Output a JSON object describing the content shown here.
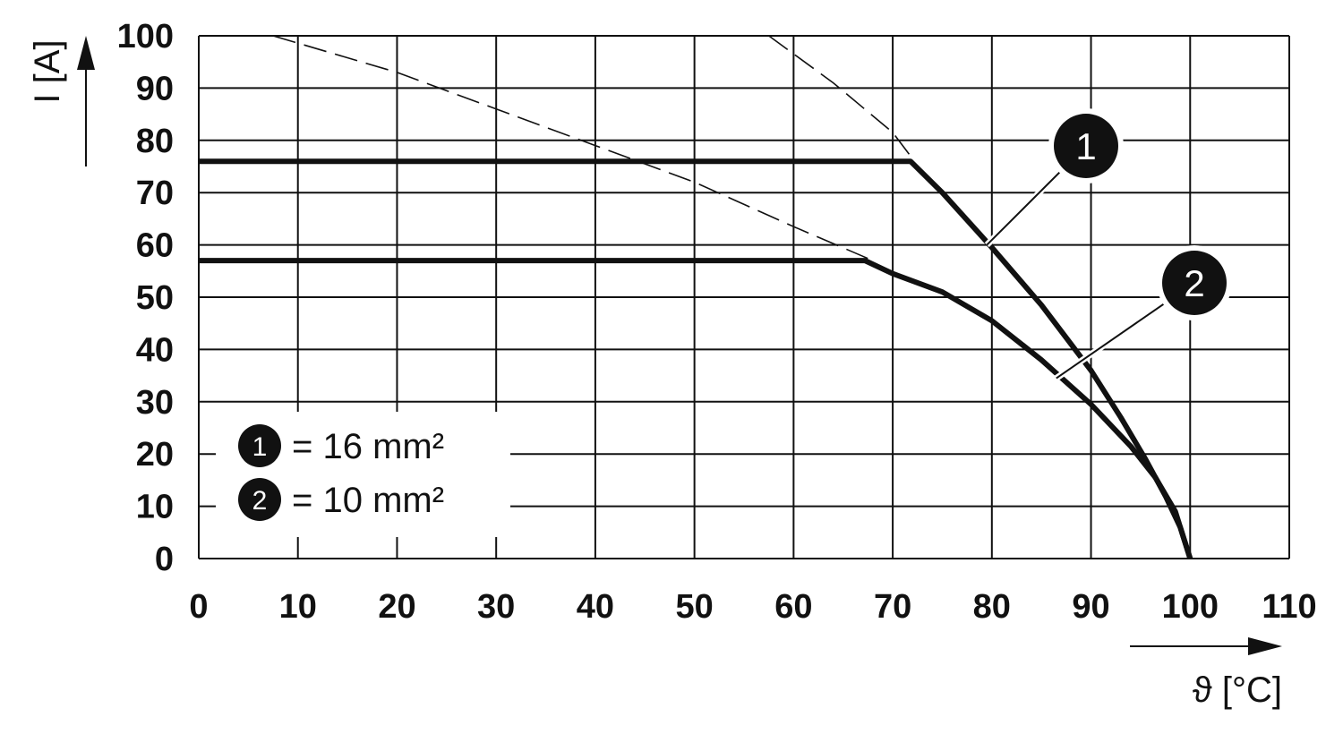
{
  "chart_data": {
    "type": "line",
    "xlabel": "ϑ [°C]",
    "ylabel": "I [A]",
    "xlim": [
      0,
      110
    ],
    "ylim": [
      0,
      100
    ],
    "x_ticks": [
      "0",
      "10",
      "20",
      "30",
      "40",
      "50",
      "60",
      "70",
      "80",
      "90",
      "100",
      "110"
    ],
    "y_ticks": [
      "0",
      "10",
      "20",
      "30",
      "40",
      "50",
      "60",
      "70",
      "80",
      "90",
      "100"
    ],
    "grid": true,
    "series": [
      {
        "id": "1",
        "name": "16 mm²",
        "style": "solid",
        "points": [
          [
            0,
            76
          ],
          [
            71.8,
            76
          ],
          [
            75,
            70
          ],
          [
            80,
            59.5
          ],
          [
            85,
            48.5
          ],
          [
            90,
            36
          ],
          [
            93,
            27
          ],
          [
            95.5,
            19
          ],
          [
            97.5,
            12
          ],
          [
            99,
            6
          ],
          [
            100,
            0
          ]
        ]
      },
      {
        "id": "2",
        "name": "10 mm²",
        "style": "solid",
        "points": [
          [
            0,
            57
          ],
          [
            67.2,
            57
          ],
          [
            70,
            54.5
          ],
          [
            75,
            51
          ],
          [
            80,
            45.5
          ],
          [
            85,
            38
          ],
          [
            90,
            29.5
          ],
          [
            94,
            21.5
          ],
          [
            96.5,
            15.5
          ],
          [
            98.5,
            9
          ],
          [
            100,
            0
          ]
        ]
      },
      {
        "style": "dashed",
        "points": [
          [
            7.5,
            100
          ],
          [
            20,
            93
          ],
          [
            30,
            86
          ],
          [
            40,
            79
          ],
          [
            50,
            72
          ],
          [
            60,
            63.5
          ],
          [
            68,
            57
          ]
        ]
      },
      {
        "style": "dashed",
        "points": [
          [
            57.5,
            100
          ],
          [
            64,
            91
          ],
          [
            70,
            81.5
          ],
          [
            72,
            76.5
          ]
        ]
      }
    ],
    "legend": {
      "placement": "bottom-left",
      "items": [
        {
          "marker": "1",
          "text": "= 16 mm²"
        },
        {
          "marker": "2",
          "text": "= 10 mm²"
        }
      ]
    },
    "markers": [
      {
        "label": "1",
        "series": "1",
        "anchor": [
          79.5,
          60
        ]
      },
      {
        "label": "2",
        "series": "2",
        "anchor": [
          86.5,
          34.5
        ]
      }
    ]
  },
  "colors": {
    "line": "#111111",
    "grid": "#111111",
    "marker_fill": "#111111",
    "marker_text": "#ffffff",
    "background": "#ffffff"
  }
}
